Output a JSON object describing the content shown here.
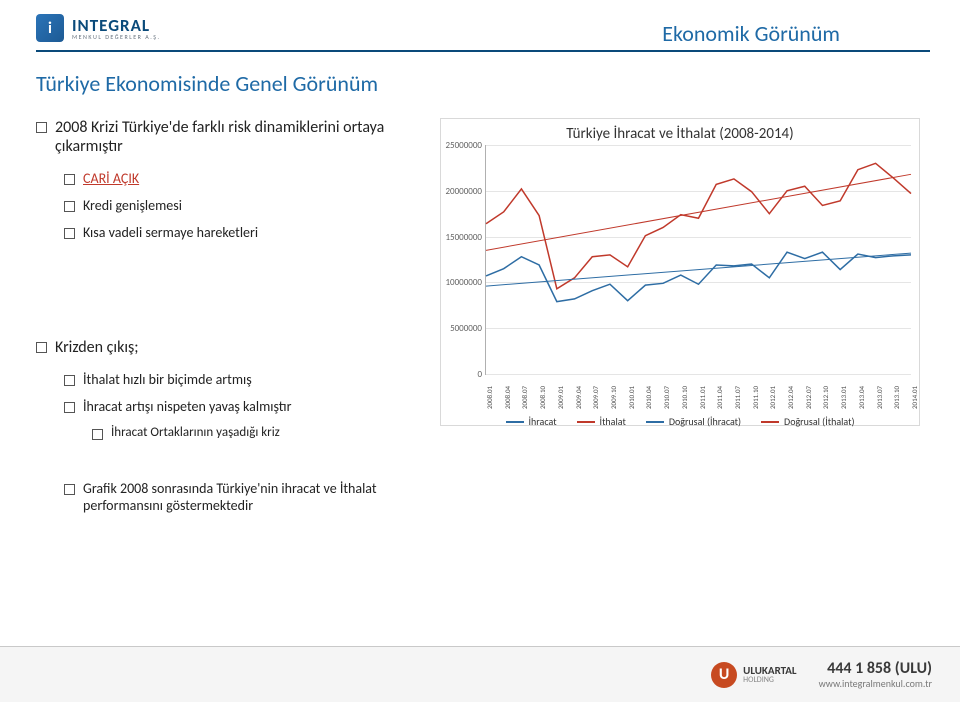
{
  "header": {
    "brand": "INTEGRAL",
    "subtitle": "MENKUL DEĞERLER A.Ş.",
    "corner_title": "Ekonomik Görünüm"
  },
  "page_title": "Türkiye Ekonomisinde Genel Görünüm",
  "bullets_top": {
    "l1": "2008 Krizi Türkiye'de farklı risk dinamiklerini ortaya",
    "l1b": "çıkarmıştır",
    "l2a": "CARİ AÇIK",
    "l2b": "Kredi genişlemesi",
    "l2c": "Kısa vadeli sermaye hareketleri"
  },
  "bullets_mid": {
    "m1": "Krizden çıkış;",
    "m2a": "İthalat hızlı bir biçimde artmış",
    "m2b": "İhracat artışı nispeten yavaş kalmıştır",
    "m3": "İhracat Ortaklarının yaşadığı kriz"
  },
  "bullets_low": {
    "b1": "Grafik 2008 sonrasında Türkiye'nin ihracat ve İthalat",
    "b1b": "performansını göstermektedir"
  },
  "chart": {
    "title": "Türkiye İhracat ve İthalat (2008-2014)",
    "type": "line",
    "ylim": [
      0,
      25000000
    ],
    "ytick_step": 5000000,
    "yticks": [
      "0",
      "5000000",
      "10000000",
      "15000000",
      "20000000",
      "25000000"
    ],
    "xlabels": [
      "2008.01",
      "2008.04",
      "2008.07",
      "2008.10",
      "2009.01",
      "2009.04",
      "2009.07",
      "2009.10",
      "2010.01",
      "2010.04",
      "2010.07",
      "2010.10",
      "2011.01",
      "2011.04",
      "2011.07",
      "2011.10",
      "2012.01",
      "2012.04",
      "2012.07",
      "2012.10",
      "2013.01",
      "2013.04",
      "2013.07",
      "2013.10",
      "2014.01"
    ],
    "series": {
      "ihracat": {
        "label": "İhracat",
        "color": "#2e6da4",
        "values": [
          10700000,
          11500000,
          12800000,
          11900000,
          7900000,
          8200000,
          9100000,
          9800000,
          8000000,
          9700000,
          9900000,
          10800000,
          9800000,
          11900000,
          11800000,
          12000000,
          10500000,
          13300000,
          12600000,
          13300000,
          11400000,
          13100000,
          12700000,
          12900000,
          13000000
        ]
      },
      "ithalat": {
        "label": "İthalat",
        "color": "#c0392b",
        "values": [
          16400000,
          17700000,
          20200000,
          17300000,
          9300000,
          10500000,
          12800000,
          13000000,
          11700000,
          15100000,
          16000000,
          17400000,
          17000000,
          20700000,
          21300000,
          19900000,
          17500000,
          20000000,
          20500000,
          18400000,
          18900000,
          22300000,
          23000000,
          21400000,
          19700000
        ]
      },
      "trend_ihracat": {
        "label": "Doğrusal (İhracat)",
        "color": "#2e6da4",
        "start": 9600000,
        "end": 13200000
      },
      "trend_ithalat": {
        "label": "Doğrusal (İthalat)",
        "color": "#c0392b",
        "start": 13500000,
        "end": 21800000
      }
    },
    "background_color": "#ffffff",
    "grid_color": "#e5e5e5",
    "axis_color": "#b0b0b0",
    "line_width": 1.5,
    "font_size_title": 15,
    "font_size_ticks": 9,
    "font_size_xlabels": 7
  },
  "footer": {
    "holding_line1": "ULUKARTAL",
    "holding_line2": "HOLDING",
    "phone": "444 1 858 (ULU)",
    "site": "www.integralmenkul.com.tr"
  }
}
